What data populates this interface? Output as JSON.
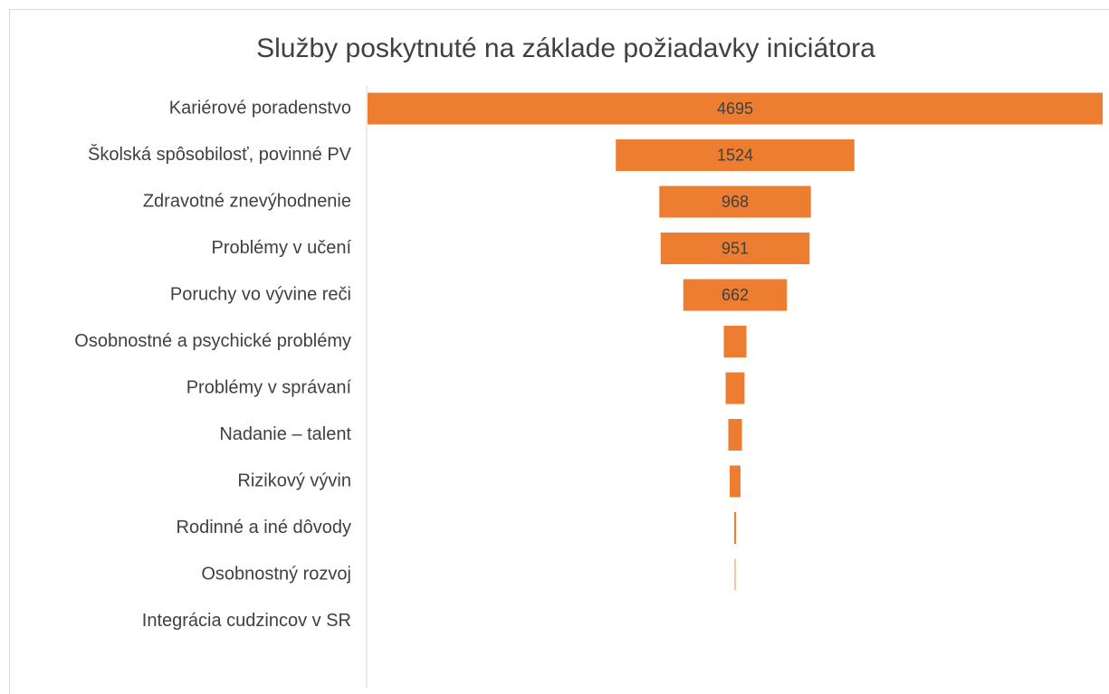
{
  "chart_data": {
    "type": "funnel",
    "title": "Služby poskytnuté na základe požiadavky iniciátora",
    "categories": [
      "Kariérové poradenstvo",
      "Školská spôsobilosť, povinné PV",
      "Zdravotné znevýhodnenie",
      "Problémy v učení",
      "Poruchy vo vývine reči",
      "Osobnostné a psychické problémy",
      "Problémy v správaní",
      "Nadanie – talent",
      "Rizikový vývin",
      "Rodinné a iné dôvody",
      "Osobnostný rozvoj",
      "Integrácia cudzincov v SR"
    ],
    "values": [
      4695,
      1524,
      968,
      951,
      662,
      145,
      121,
      87,
      69,
      12,
      5,
      0
    ],
    "value_labels": [
      "4695",
      "1524",
      "968",
      "951",
      "662",
      null,
      null,
      null,
      null,
      null,
      null,
      null
    ],
    "color": "#ed7d31"
  }
}
